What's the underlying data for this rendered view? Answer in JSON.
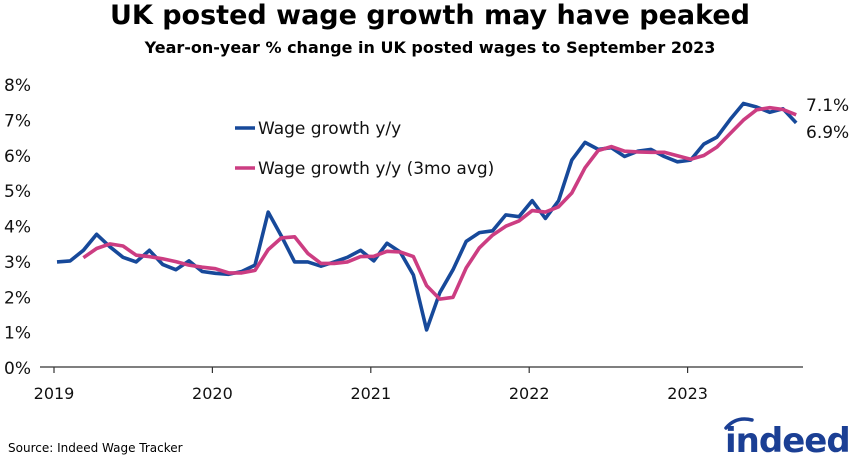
{
  "title": "UK posted wage growth may have peaked",
  "subtitle": "Year-on-year % change in UK posted wages to September 2023",
  "source": "Source: Indeed Wage Tracker",
  "logo_text": "indeed",
  "chart_data": {
    "type": "line",
    "title": "UK posted wage growth may have peaked",
    "subtitle": "Year-on-year % change in UK posted wages to September 2023",
    "x_start": "2019-01",
    "x_end": "2023-09",
    "x_frequency": "monthly",
    "x_tick_labels": [
      "2019",
      "2020",
      "2021",
      "2022",
      "2023"
    ],
    "y_tick_labels": [
      "0%",
      "1%",
      "2%",
      "3%",
      "4%",
      "5%",
      "6%",
      "7%",
      "8%"
    ],
    "ylim": [
      0,
      8
    ],
    "grid": false,
    "legend_placement": "top-left",
    "series": [
      {
        "name": "Wage growth y/y",
        "color": "#17499a",
        "start": "2019-01",
        "end_label": "6.9%",
        "values": [
          2.97,
          3.0,
          3.3,
          3.75,
          3.4,
          3.1,
          2.97,
          3.3,
          2.9,
          2.75,
          3.0,
          2.7,
          2.65,
          2.62,
          2.7,
          2.88,
          4.38,
          3.7,
          2.97,
          2.97,
          2.85,
          2.97,
          3.1,
          3.3,
          3.0,
          3.5,
          3.25,
          2.6,
          1.05,
          2.1,
          2.75,
          3.55,
          3.8,
          3.85,
          4.3,
          4.25,
          4.7,
          4.2,
          4.7,
          5.85,
          6.35,
          6.15,
          6.2,
          5.95,
          6.1,
          6.15,
          5.95,
          5.8,
          5.85,
          6.3,
          6.5,
          7.0,
          7.45,
          7.35,
          7.2,
          7.3,
          6.9
        ]
      },
      {
        "name": "Wage growth y/y (3mo avg)",
        "color": "#cc3d82",
        "start": "2019-03",
        "end_label": "7.1%",
        "values": [
          3.09,
          3.35,
          3.48,
          3.42,
          3.16,
          3.12,
          3.06,
          2.98,
          2.88,
          2.82,
          2.78,
          2.66,
          2.66,
          2.73,
          3.32,
          3.65,
          3.68,
          3.21,
          2.93,
          2.93,
          2.97,
          3.12,
          3.13,
          3.27,
          3.25,
          3.12,
          2.3,
          1.92,
          1.97,
          2.8,
          3.37,
          3.73,
          3.98,
          4.13,
          4.42,
          4.38,
          4.53,
          4.92,
          5.63,
          6.12,
          6.23,
          6.1,
          6.08,
          6.07,
          6.07,
          5.97,
          5.87,
          5.98,
          6.22,
          6.6,
          6.98,
          7.27,
          7.33,
          7.28,
          7.13
        ]
      }
    ]
  }
}
